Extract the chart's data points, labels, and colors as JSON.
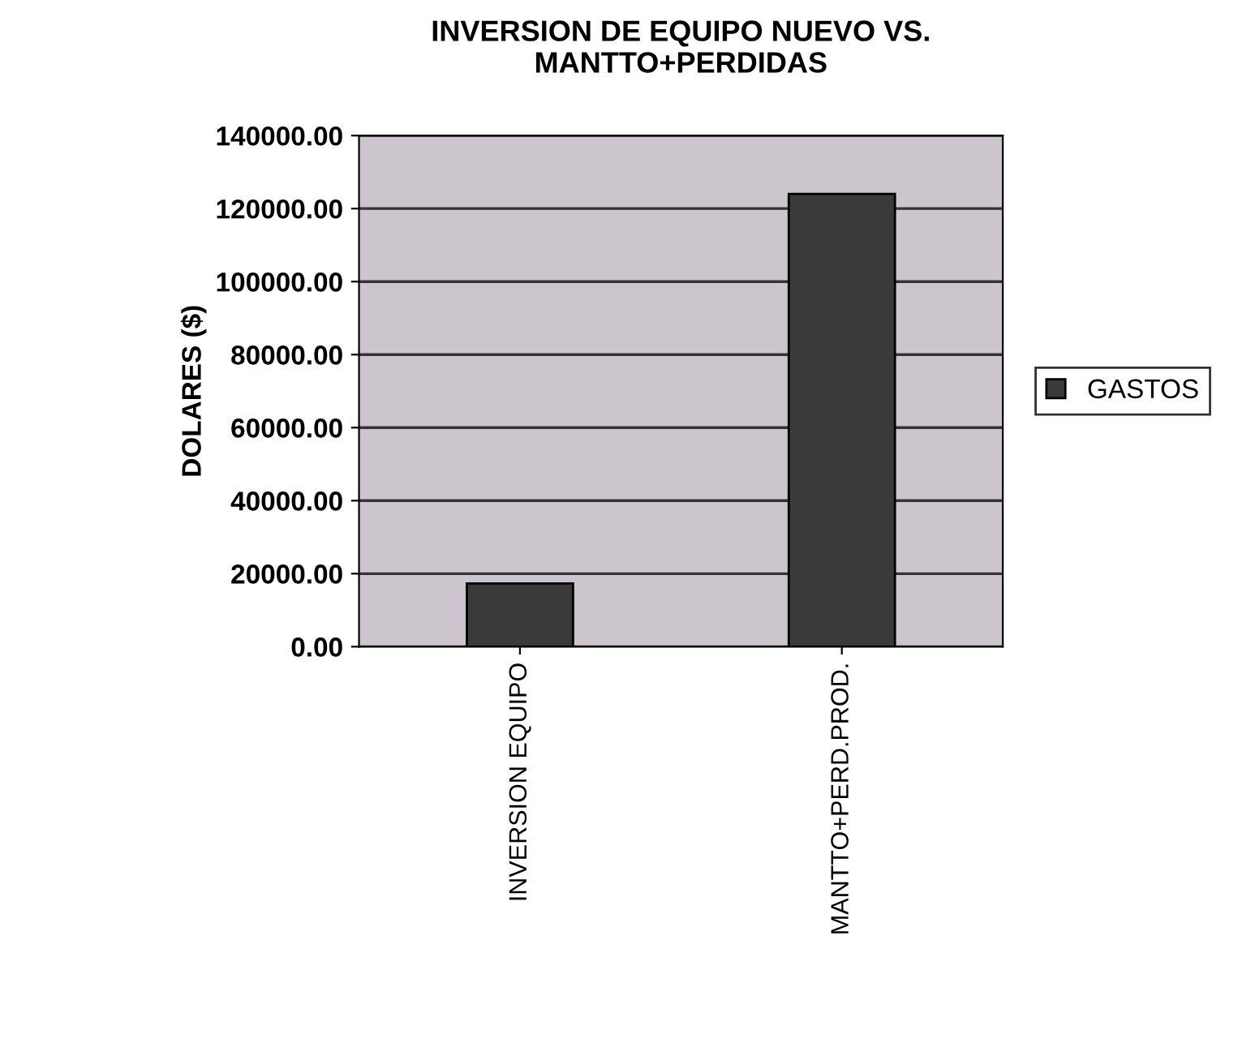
{
  "chart_data": {
    "type": "bar",
    "title": "INVERSION DE EQUIPO NUEVO VS.\nMANTTO+PERDIDAS",
    "ylabel": "DOLARES ($)",
    "categories": [
      "INVERSION EQUIPO",
      "MANTTO+PERD.PROD."
    ],
    "series": [
      {
        "name": "GASTOS",
        "color": "#3a3a3a",
        "values": [
          17300,
          124000
        ]
      }
    ],
    "ylim": [
      0,
      140000
    ],
    "yticks": [
      {
        "value": 0,
        "label": "0.00"
      },
      {
        "value": 20000,
        "label": "20000.00"
      },
      {
        "value": 40000,
        "label": "40000.00"
      },
      {
        "value": 60000,
        "label": "60000.00"
      },
      {
        "value": 80000,
        "label": "80000.00"
      },
      {
        "value": 100000,
        "label": "100000.00"
      },
      {
        "value": 120000,
        "label": "120000.00"
      },
      {
        "value": 140000,
        "label": "140000.00"
      }
    ],
    "grid": "y",
    "legend": "right"
  }
}
